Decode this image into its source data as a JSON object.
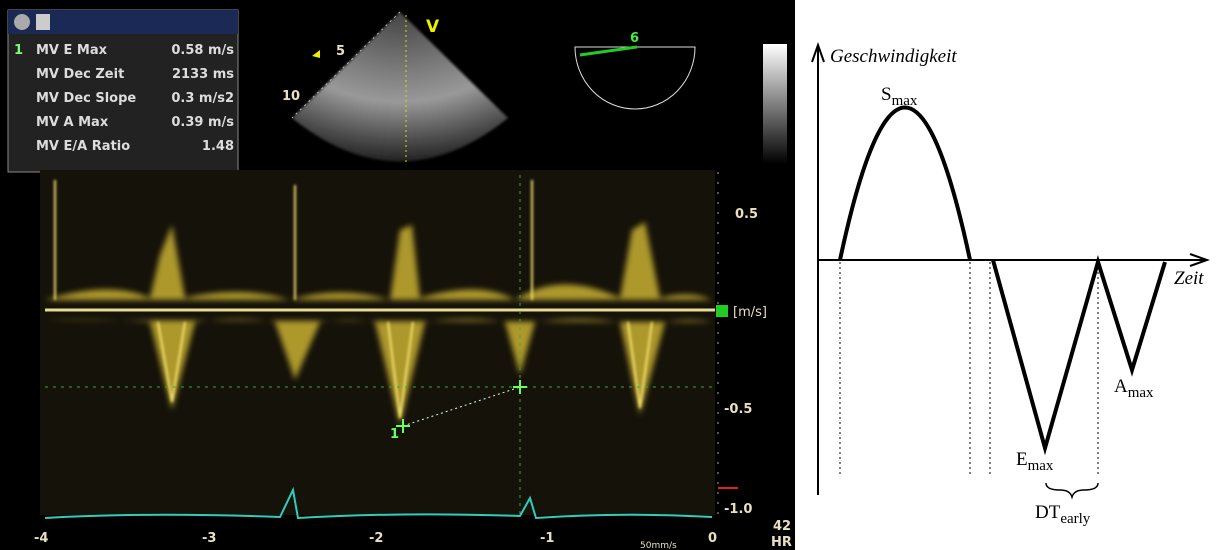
{
  "measurements": {
    "index": "1",
    "rows": [
      [
        "MV E Max",
        "0.58 m/s"
      ],
      [
        "MV Dec Zeit",
        "2133 ms"
      ],
      [
        "MV Dec Slope",
        "0.3 m/s2"
      ],
      [
        "MV A Max",
        "0.39 m/s"
      ],
      [
        "MV E/A Ratio",
        "1.48"
      ]
    ]
  },
  "sector": {
    "depth_labels": [
      "5",
      "10"
    ],
    "marker": "V",
    "angle": "6"
  },
  "doppler": {
    "velocity_labels": [
      "0.5",
      "[m/s]",
      "-0.5",
      "-1.0"
    ],
    "time_labels": [
      "-4",
      "-3",
      "-2",
      "-1",
      "0"
    ],
    "sweep_speed": "50mm/s",
    "heart_rate": "42",
    "heart_rate_label": "HR",
    "cursor_label": "1"
  },
  "diagram": {
    "y_axis_label": "Geschwindigkeit",
    "x_axis_label": "Zeit",
    "peaks": [
      {
        "main": "S",
        "sub": "max"
      },
      {
        "main": "E",
        "sub": "max"
      },
      {
        "main": "A",
        "sub": "max"
      }
    ],
    "interval": {
      "main": "DT",
      "sub": "early"
    }
  }
}
